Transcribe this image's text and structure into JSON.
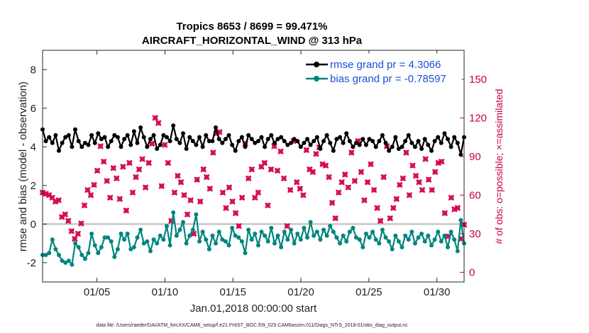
{
  "chart_data": {
    "type": "line",
    "title_line1": "Tropics 8653 / 8699 = 99.471%",
    "title_line2": "AIRCRAFT_HORIZONTAL_WIND @ 313 hPa",
    "xlabel": "Jan.01,2018 00:00:00 start",
    "ylabel": "rmse and bias (model - observation)",
    "ylabel_right": "# of obs: o=possible; ×=assimilated",
    "xlim": [
      1,
      32
    ],
    "ylim": [
      -3,
      9
    ],
    "ylim_right": [
      -7.5,
      172.5
    ],
    "x_ticks": [
      5,
      10,
      15,
      20,
      25,
      30
    ],
    "x_tick_labels": [
      "01/05",
      "01/10",
      "01/15",
      "01/20",
      "01/25",
      "01/30"
    ],
    "y_ticks": [
      -2,
      0,
      2,
      4,
      6,
      8
    ],
    "y_tick_labels": [
      "-2",
      "0",
      "2",
      "4",
      "6",
      "8"
    ],
    "y_right_ticks": [
      0,
      30,
      60,
      90,
      120,
      150
    ],
    "y_right_tick_labels": [
      "0",
      "30",
      "60",
      "90",
      "120",
      "150"
    ],
    "zero_line": 0,
    "footer": "data file: /Users/raeder/DAI/ATM_forcXX/CAM6_setup/f.e21.FHIST_BGC.f09_025.CAM6assim.011/Diags_NTrS_2018-01/obs_diag_output.nc",
    "legend_position": "top-right",
    "series": [
      {
        "name": "rmse grand pr = 4.3066",
        "color": "#000000",
        "values": [
          4.9,
          4.3,
          4.5,
          4.2,
          4.6,
          3.8,
          4.2,
          4.5,
          4.6,
          4.0,
          4.9,
          4.3,
          4.0,
          4.2,
          4.1,
          4.6,
          4.2,
          4.7,
          4.4,
          4.5,
          4.0,
          4.3,
          4.6,
          4.5,
          4.0,
          4.4,
          4.6,
          4.1,
          4.8,
          4.2,
          5.0,
          4.5,
          4.0,
          4.4,
          4.6,
          3.9,
          4.1,
          4.6,
          4.5,
          4.3,
          5.1,
          4.4,
          4.2,
          4.7,
          3.9,
          4.5,
          4.3,
          4.1,
          4.5,
          4.0,
          4.6,
          4.3,
          4.3,
          5.0,
          4.4,
          4.2,
          4.4,
          4.6,
          4.1,
          3.8,
          4.3,
          4.5,
          4.0,
          4.6,
          4.4,
          4.2,
          4.3,
          4.5,
          4.0,
          4.4,
          4.6,
          4.2,
          4.4,
          4.5,
          4.3,
          4.1,
          4.2,
          4.4,
          4.3,
          4.0,
          4.2,
          4.4,
          4.1,
          4.3,
          4.5,
          3.9,
          4.3,
          4.6,
          4.2,
          3.8,
          4.4,
          4.5,
          4.2,
          4.7,
          4.3,
          4.0,
          4.2,
          4.1,
          4.4,
          4.1,
          4.4,
          4.3,
          4.0,
          4.3,
          4.6,
          4.2,
          3.8,
          4.0,
          4.5,
          3.9,
          4.0,
          4.3,
          4.6,
          4.2,
          4.0,
          4.3,
          3.9,
          4.4,
          4.1,
          3.8,
          4.3,
          4.5,
          4.2,
          4.7,
          4.4,
          4.0,
          4.5,
          4.2,
          3.6,
          4.5
        ]
      },
      {
        "name": "bias grand pr = -0.78597",
        "color": "#00857f",
        "values": [
          -1.6,
          -1.6,
          -1.5,
          -0.8,
          -1.3,
          -1.6,
          -1.9,
          -2.0,
          -1.9,
          -2.1,
          -1.0,
          -1.2,
          -1.6,
          -1.8,
          -1.5,
          -0.5,
          -1.1,
          -1.5,
          -1.2,
          -0.7,
          -0.7,
          -0.9,
          -1.7,
          -1.3,
          -0.5,
          -0.8,
          -0.5,
          -1.3,
          -1.2,
          -0.7,
          -0.3,
          -1.0,
          -0.9,
          -1.4,
          -0.8,
          -1.0,
          -0.6,
          -0.8,
          -0.1,
          -1.1,
          0.6,
          -0.6,
          -0.3,
          0.1,
          -1.0,
          -0.6,
          -0.3,
          0.5,
          -0.9,
          -0.4,
          -0.8,
          -1.3,
          -0.6,
          -1.0,
          -0.4,
          -0.8,
          -0.9,
          -1.1,
          -0.2,
          -0.6,
          -0.7,
          -0.9,
          -1.5,
          -0.3,
          -0.8,
          -0.5,
          -1.1,
          -0.4,
          -0.6,
          -0.9,
          -0.2,
          -1.0,
          -0.6,
          -1.2,
          -0.4,
          -0.8,
          -0.3,
          -1.0,
          -0.5,
          -0.8,
          -0.2,
          -0.7,
          0.1,
          -0.6,
          -0.4,
          -0.8,
          -0.3,
          -0.6,
          -0.1,
          -0.4,
          -0.7,
          -1.0,
          -0.6,
          -0.9,
          -0.4,
          -0.2,
          -0.7,
          -0.8,
          -1.2,
          -0.5,
          -0.7,
          -0.4,
          -0.8,
          -1.0,
          -0.3,
          -0.7,
          -0.9,
          -1.3,
          -0.6,
          -0.9,
          -1.2,
          -0.6,
          -0.8,
          -0.4,
          -1.0,
          -0.7,
          -0.5,
          -0.9,
          -0.6,
          -1.1,
          -0.8,
          -0.4,
          -0.9,
          -0.6,
          -1.2,
          -0.4,
          -0.8,
          -1.4,
          0.2,
          -1.0
        ]
      }
    ],
    "obs_series": {
      "name": "# of obs",
      "color": "#d4004f",
      "values": [
        62,
        61,
        60,
        58,
        55,
        56,
        43,
        45,
        40,
        32,
        26,
        30,
        38,
        52,
        64,
        60,
        68,
        79,
        98,
        86,
        71,
        58,
        81,
        73,
        57,
        82,
        48,
        85,
        62,
        74,
        80,
        88,
        66,
        85,
        100,
        120,
        116,
        67,
        99,
        85,
        40,
        62,
        75,
        70,
        60,
        45,
        56,
        30,
        72,
        55,
        80,
        74,
        65,
        93,
        108,
        109,
        62,
        50,
        66,
        55,
        46,
        36,
        58,
        100,
        73,
        80,
        58,
        62,
        82,
        85,
        52,
        80,
        98,
        79,
        94,
        73,
        36,
        64,
        102,
        70,
        65,
        60,
        95,
        80,
        78,
        92,
        97,
        84,
        83,
        74,
        54,
        42,
        62,
        70,
        76,
        66,
        93,
        71,
        102,
        78,
        56,
        70,
        84,
        64,
        50,
        40,
        74,
        98,
        42,
        50,
        57,
        68,
        73,
        93,
        60,
        83,
        75,
        70,
        64,
        88,
        72,
        64,
        78,
        85,
        86,
        46,
        28,
        58,
        49,
        50,
        26,
        37
      ]
    }
  }
}
